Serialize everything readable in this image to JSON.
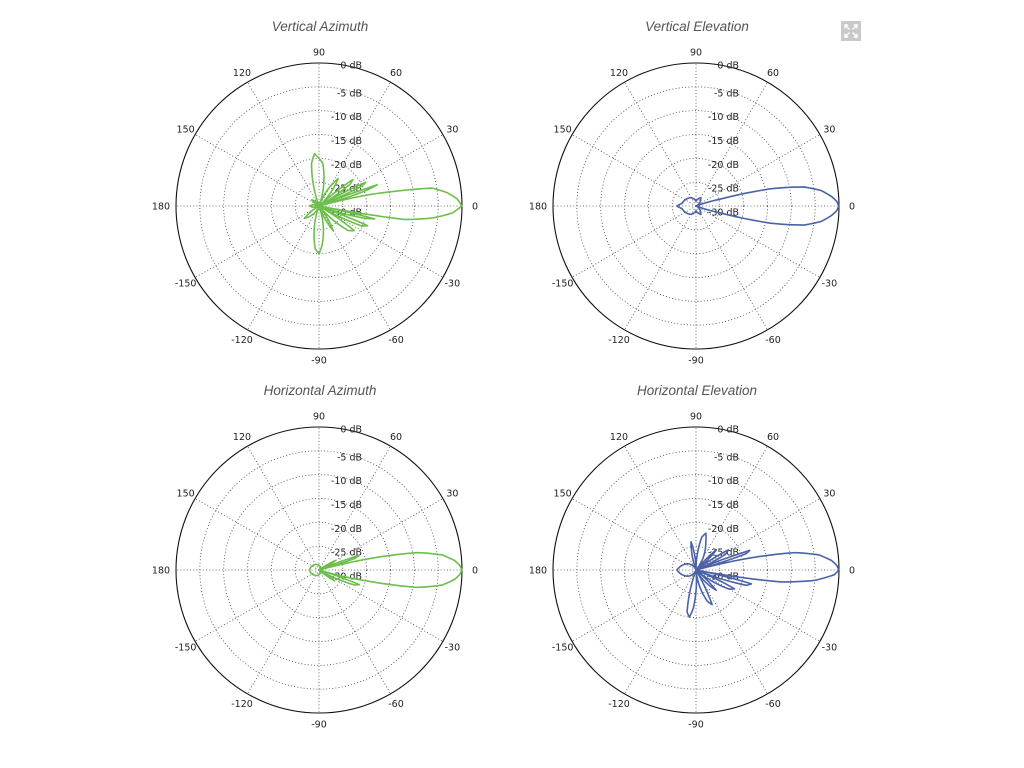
{
  "colors": {
    "green": "#6cbf4a",
    "blue": "#4a62a8"
  },
  "controls": {
    "expand_icon": "expand-arrows-icon"
  },
  "chart_data": [
    {
      "type": "polar",
      "title": "Vertical Azimuth",
      "color": "green",
      "angle_labels": [
        "0",
        "30",
        "60",
        "90",
        "120",
        "150",
        "180",
        "-150",
        "-120",
        "-90",
        "-60",
        "-30"
      ],
      "radial_labels": [
        "0 dB",
        "-5 dB",
        "-10 dB",
        "-15 dB",
        "-20 dB",
        "-25 dB",
        "-30 dB"
      ],
      "rlim": [
        -30,
        0
      ],
      "series": [
        {
          "points": [
            [
              0,
              0
            ],
            [
              3,
              -1
            ],
            [
              6,
              -3
            ],
            [
              9,
              -6
            ],
            [
              11,
              -14
            ],
            [
              13,
              -20
            ],
            [
              15,
              -30
            ],
            [
              18,
              -20
            ],
            [
              20,
              -17
            ],
            [
              22,
              -30
            ],
            [
              25,
              -20
            ],
            [
              27,
              -19
            ],
            [
              30,
              -30
            ],
            [
              35,
              -22
            ],
            [
              38,
              -21
            ],
            [
              42,
              -30
            ],
            [
              55,
              -23
            ],
            [
              62,
              -26
            ],
            [
              70,
              -30
            ],
            [
              85,
              -21
            ],
            [
              95,
              -19
            ],
            [
              100,
              -21
            ],
            [
              110,
              -30
            ],
            [
              140,
              -28
            ],
            [
              150,
              -30
            ],
            [
              180,
              -28
            ],
            [
              210,
              -30
            ],
            [
              220,
              -26
            ],
            [
              250,
              -30
            ],
            [
              265,
              -21
            ],
            [
              270,
              -20
            ],
            [
              275,
              -22
            ],
            [
              290,
              -30
            ],
            [
              300,
              -24
            ],
            [
              310,
              -30
            ],
            [
              320,
              -22
            ],
            [
              325,
              -21
            ],
            [
              330,
              -30
            ],
            [
              335,
              -20
            ],
            [
              338,
              -19
            ],
            [
              340,
              -30
            ],
            [
              345,
              -20
            ],
            [
              347,
              -18
            ],
            [
              349,
              -30
            ],
            [
              351,
              -12
            ],
            [
              354,
              -6
            ],
            [
              357,
              -2
            ],
            [
              360,
              0
            ]
          ]
        }
      ]
    },
    {
      "type": "polar",
      "title": "Vertical Elevation",
      "color": "blue",
      "angle_labels": [
        "0",
        "30",
        "60",
        "90",
        "120",
        "150",
        "180",
        "-150",
        "-120",
        "-90",
        "-60",
        "-30"
      ],
      "radial_labels": [
        "0 dB",
        "-5 dB",
        "-10 dB",
        "-15 dB",
        "-20 dB",
        "-25 dB",
        "-30 dB"
      ],
      "rlim": [
        -30,
        0
      ],
      "series": [
        {
          "points": [
            [
              0,
              0
            ],
            [
              2,
              -0.5
            ],
            [
              4,
              -1.5
            ],
            [
              7,
              -3.5
            ],
            [
              10,
              -7
            ],
            [
              13,
              -14
            ],
            [
              16,
              -25
            ],
            [
              20,
              -30
            ],
            [
              60,
              -28
            ],
            [
              90,
              -29
            ],
            [
              120,
              -28
            ],
            [
              170,
              -27
            ],
            [
              180,
              -26
            ],
            [
              190,
              -27
            ],
            [
              240,
              -28
            ],
            [
              270,
              -29
            ],
            [
              300,
              -28
            ],
            [
              340,
              -30
            ],
            [
              344,
              -25
            ],
            [
              347,
              -14
            ],
            [
              350,
              -7
            ],
            [
              353,
              -3.5
            ],
            [
              356,
              -1.5
            ],
            [
              358,
              -0.5
            ],
            [
              360,
              0
            ]
          ]
        }
      ]
    },
    {
      "type": "polar",
      "title": "Horizontal Azimuth",
      "color": "green",
      "angle_labels": [
        "0",
        "30",
        "60",
        "90",
        "120",
        "150",
        "180",
        "-150",
        "-120",
        "-90",
        "-60",
        "-30"
      ],
      "radial_labels": [
        "0 dB",
        "-5 dB",
        "-10 dB",
        "-15 dB",
        "-20 dB",
        "-25 dB",
        "-30 dB"
      ],
      "rlim": [
        -30,
        0
      ],
      "series": [
        {
          "points": [
            [
              0,
              0
            ],
            [
              2,
              -0.5
            ],
            [
              4,
              -1.5
            ],
            [
              7,
              -4
            ],
            [
              10,
              -9
            ],
            [
              13,
              -20
            ],
            [
              15,
              -30
            ],
            [
              18,
              -22
            ],
            [
              20,
              -21
            ],
            [
              23,
              -30
            ],
            [
              30,
              -26
            ],
            [
              36,
              -30
            ],
            [
              90,
              -29
            ],
            [
              180,
              -28
            ],
            [
              270,
              -29
            ],
            [
              320,
              -30
            ],
            [
              325,
              -26
            ],
            [
              330,
              -30
            ],
            [
              337,
              -22
            ],
            [
              340,
              -21
            ],
            [
              343,
              -30
            ],
            [
              347,
              -20
            ],
            [
              350,
              -9
            ],
            [
              353,
              -4
            ],
            [
              356,
              -1.5
            ],
            [
              358,
              -0.5
            ],
            [
              360,
              0
            ]
          ]
        }
      ]
    },
    {
      "type": "polar",
      "title": "Horizontal Elevation",
      "color": "blue",
      "angle_labels": [
        "0",
        "30",
        "60",
        "90",
        "120",
        "150",
        "180",
        "-150",
        "-120",
        "-90",
        "-60",
        "-30"
      ],
      "radial_labels": [
        "0 dB",
        "-5 dB",
        "-10 dB",
        "-15 dB",
        "-20 dB",
        "-25 dB",
        "-30 dB"
      ],
      "rlim": [
        -30,
        0
      ],
      "series": [
        {
          "points": [
            [
              0,
              0
            ],
            [
              2,
              -0.5
            ],
            [
              4,
              -1.5
            ],
            [
              7,
              -4
            ],
            [
              10,
              -9
            ],
            [
              13,
              -20
            ],
            [
              15,
              -30
            ],
            [
              18,
              -19
            ],
            [
              20,
              -18
            ],
            [
              23,
              -30
            ],
            [
              28,
              -23
            ],
            [
              32,
              -22
            ],
            [
              36,
              -30
            ],
            [
              45,
              -24
            ],
            [
              50,
              -30
            ],
            [
              70,
              -24
            ],
            [
              75,
              -22
            ],
            [
              80,
              -23
            ],
            [
              90,
              -30
            ],
            [
              100,
              -24
            ],
            [
              110,
              -30
            ],
            [
              140,
              -28
            ],
            [
              180,
              -26
            ],
            [
              220,
              -28
            ],
            [
              250,
              -30
            ],
            [
              258,
              -21
            ],
            [
              262,
              -20
            ],
            [
              266,
              -22
            ],
            [
              275,
              -30
            ],
            [
              290,
              -23
            ],
            [
              295,
              -22
            ],
            [
              300,
              -30
            ],
            [
              315,
              -24
            ],
            [
              320,
              -30
            ],
            [
              330,
              -22
            ],
            [
              334,
              -21
            ],
            [
              338,
              -30
            ],
            [
              343,
              -19
            ],
            [
              346,
              -18
            ],
            [
              349,
              -30
            ],
            [
              352,
              -12
            ],
            [
              355,
              -5
            ],
            [
              358,
              -1
            ],
            [
              360,
              0
            ]
          ]
        }
      ]
    }
  ]
}
